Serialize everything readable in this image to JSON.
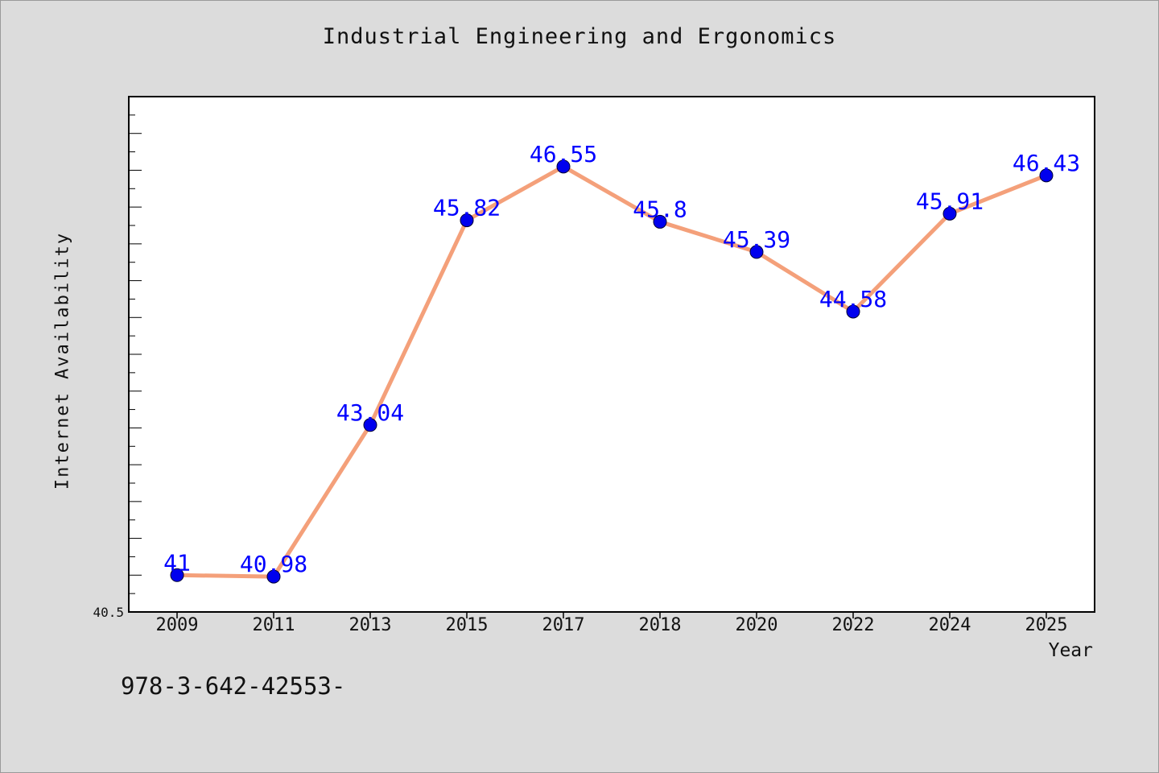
{
  "chart_data": {
    "type": "line",
    "title": "Industrial Engineering and Ergonomics",
    "xlabel": "Year",
    "ylabel": "Internet Availability",
    "categories": [
      "2009",
      "2011",
      "2013",
      "2015",
      "2017",
      "2018",
      "2020",
      "2022",
      "2024",
      "2025"
    ],
    "series": [
      {
        "values": [
          41,
          40.98,
          43.04,
          45.82,
          46.55,
          45.8,
          45.39,
          44.58,
          45.91,
          46.43
        ],
        "labels": [
          "41",
          "40.98",
          "43.04",
          "45.82",
          "46.55",
          "45.8",
          "45.39",
          "44.58",
          "45.91",
          "46.43"
        ]
      }
    ],
    "ylim": [
      40.5,
      47.5
    ],
    "ytick_label": "40.5",
    "grid": false,
    "legend": "none",
    "colors": {
      "line": "#f4a07a",
      "marker": "#0000ee",
      "label": "#0000ff",
      "plot_bg": "#ffffff",
      "page_bg": "#dcdcdc"
    }
  },
  "footer_text": "978-3-642-42553-"
}
